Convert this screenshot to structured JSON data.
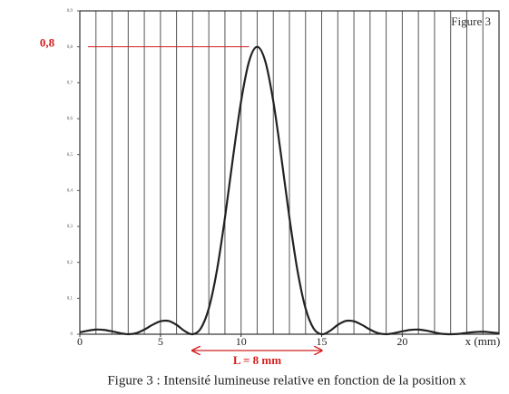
{
  "chart_data": {
    "type": "line",
    "title": "Figure 3",
    "caption": "Figure 3 : Intensité lumineuse relative en fonction de la position x",
    "x_label": "x (mm)",
    "x": [
      0,
      0.5,
      1,
      1.5,
      2,
      2.5,
      3,
      3.5,
      4,
      4.5,
      5,
      5.5,
      6,
      6.5,
      7,
      7.5,
      8,
      8.5,
      9,
      9.5,
      10,
      10.5,
      11,
      11.5,
      12,
      12.5,
      13,
      13.5,
      14,
      14.5,
      15,
      15.5,
      16,
      16.5,
      17,
      17.5,
      18,
      18.5,
      19,
      19.5,
      20,
      20.5,
      21,
      21.5,
      22,
      22.5,
      23,
      23.5,
      24,
      24.5,
      25,
      25.5,
      26
    ],
    "values": [
      0.005,
      0.01,
      0.013,
      0.012,
      0.008,
      0.003,
      0,
      0.003,
      0.013,
      0.026,
      0.036,
      0.037,
      0.026,
      0.009,
      0,
      0.016,
      0.072,
      0.177,
      0.324,
      0.492,
      0.648,
      0.76,
      0.8,
      0.76,
      0.648,
      0.492,
      0.324,
      0.177,
      0.072,
      0.016,
      0,
      0.009,
      0.026,
      0.037,
      0.036,
      0.026,
      0.013,
      0.003,
      0,
      0.003,
      0.008,
      0.012,
      0.013,
      0.01,
      0.005,
      0.001,
      0,
      0.001,
      0.004,
      0.006,
      0.007,
      0.005,
      0.003
    ],
    "color": "#222222",
    "xlim": [
      0,
      26
    ],
    "ylim": [
      0,
      0.9
    ],
    "xticks": [
      0,
      5,
      10,
      15,
      20
    ],
    "xminorticks": [
      0,
      1,
      2,
      3,
      4,
      5,
      6,
      7,
      8,
      9,
      10,
      11,
      12,
      13,
      14,
      15,
      16,
      17,
      18,
      19,
      20,
      21,
      22,
      23,
      24,
      25,
      26
    ],
    "yticks": [
      0,
      {
        "value": 0.1,
        "label": "0,1"
      },
      {
        "value": 0.2,
        "label": "0,2"
      },
      {
        "value": 0.3,
        "label": "0,3"
      },
      {
        "value": 0.4,
        "label": "0,4"
      },
      {
        "value": 0.5,
        "label": "0,5"
      },
      {
        "value": 0.6,
        "label": "0,6"
      },
      {
        "value": 0.7,
        "label": "0,7"
      },
      {
        "value": 0.8,
        "label": "0,8"
      },
      {
        "value": 0.9,
        "label": "0,9"
      }
    ],
    "annotations": [
      {
        "label": "0,8",
        "y": 0.8,
        "x2": 10.5,
        "color": "#d42020"
      },
      {
        "label": "L = 8 mm",
        "x1": 7,
        "x2": 15,
        "color": "#d42020"
      }
    ]
  }
}
